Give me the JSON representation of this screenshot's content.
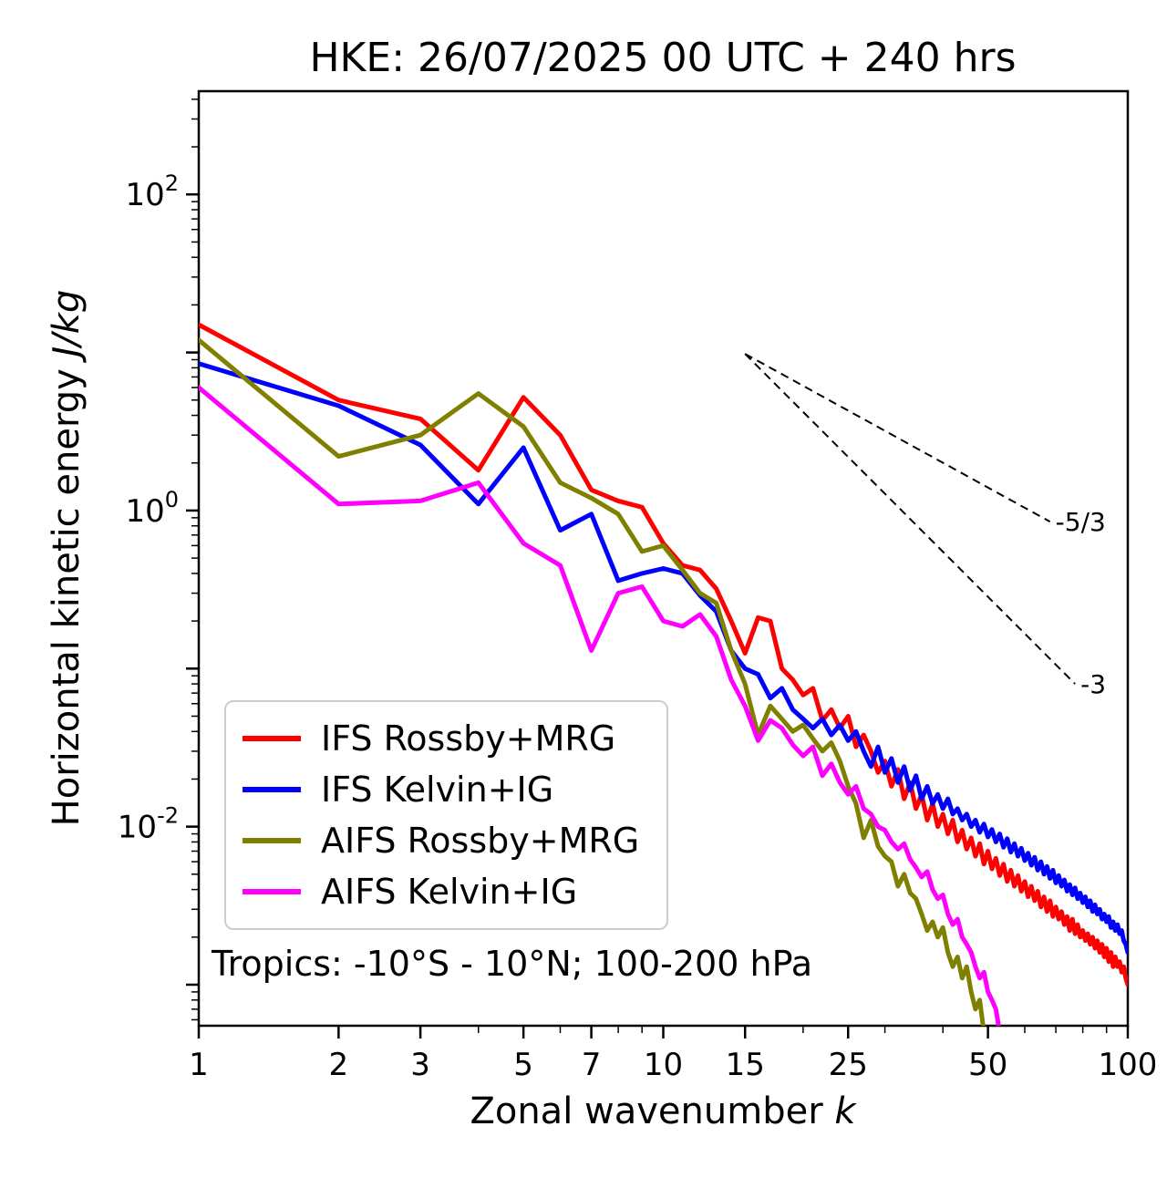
{
  "title": "HKE: 26/07/2025 00 UTC + 240 hrs",
  "labels": {
    "xlabel_text": "Zonal wavenumber ",
    "xlabel_math": "k",
    "ylabel_text": "Horizontal kinetic energy ",
    "ylabel_math": "J/kg",
    "annotation": "Tropics: -10°S - 10°N; 100-200 hPa"
  },
  "chart_data": {
    "type": "line",
    "x_scale": "log",
    "y_scale": "log",
    "xlim": [
      1,
      100
    ],
    "ylim": [
      0.00055,
      450.0
    ],
    "grid": false,
    "legend_position": "lower left",
    "xlabel": "Zonal wavenumber k",
    "ylabel": "Horizontal kinetic energy J/kg",
    "x_ticks": [
      1,
      2,
      3,
      5,
      7,
      10,
      15,
      25,
      50,
      100
    ],
    "x_minor_ticks": [
      4,
      6,
      8,
      9,
      20,
      30,
      40,
      60,
      70,
      80,
      90
    ],
    "y_tick_exponents": [
      2,
      0,
      -2
    ],
    "y_unlabeled_decades": [
      -3,
      -1,
      1
    ],
    "reference_lines": [
      {
        "label": "-5/3",
        "x": [
          15,
          68
        ],
        "y": [
          9.8,
          0.85
        ]
      },
      {
        "label": "-3",
        "x": [
          15,
          77
        ],
        "y": [
          9.8,
          0.08
        ]
      }
    ],
    "series": [
      {
        "name": "IFS Rossby+MRG",
        "color": "#ff0000",
        "x": [
          1,
          2,
          3,
          4,
          5,
          6,
          7,
          8,
          9,
          10,
          11,
          12,
          13,
          14,
          15,
          16,
          17,
          18,
          19,
          20,
          21,
          22,
          23,
          24,
          25,
          26,
          27,
          28,
          29,
          30,
          31,
          32,
          33,
          34,
          35,
          36,
          37,
          38,
          39,
          40,
          41,
          42,
          43,
          44,
          45,
          46,
          47,
          48,
          49,
          50,
          51,
          52,
          53,
          54,
          55,
          56,
          57,
          58,
          59,
          60,
          61,
          62,
          63,
          64,
          65,
          66,
          67,
          68,
          69,
          70,
          71,
          72,
          73,
          74,
          75,
          76,
          77,
          78,
          79,
          80,
          81,
          82,
          83,
          84,
          85,
          86,
          87,
          88,
          89,
          90,
          91,
          92,
          93,
          94,
          95,
          96,
          97,
          98,
          99,
          100
        ],
        "y": [
          15,
          5.0,
          3.8,
          1.8,
          5.2,
          3.0,
          1.35,
          1.15,
          1.05,
          0.62,
          0.45,
          0.42,
          0.32,
          0.2,
          0.125,
          0.21,
          0.2,
          0.1,
          0.085,
          0.068,
          0.075,
          0.047,
          0.055,
          0.042,
          0.05,
          0.032,
          0.038,
          0.03,
          0.022,
          0.026,
          0.018,
          0.023,
          0.015,
          0.019,
          0.013,
          0.016,
          0.011,
          0.014,
          0.01,
          0.012,
          0.009,
          0.011,
          0.008,
          0.0095,
          0.0072,
          0.0085,
          0.0065,
          0.0078,
          0.0058,
          0.007,
          0.0054,
          0.0063,
          0.0049,
          0.0058,
          0.0045,
          0.0053,
          0.0042,
          0.0049,
          0.0039,
          0.0045,
          0.0036,
          0.0042,
          0.0034,
          0.0039,
          0.0031,
          0.0036,
          0.0029,
          0.0034,
          0.0027,
          0.0031,
          0.0026,
          0.0029,
          0.0024,
          0.0027,
          0.0022,
          0.0026,
          0.0021,
          0.0024,
          0.002,
          0.0022,
          0.0019,
          0.0021,
          0.0018,
          0.002,
          0.0017,
          0.0019,
          0.0016,
          0.0018,
          0.0015,
          0.0017,
          0.0014,
          0.0016,
          0.0013,
          0.0015,
          0.0013,
          0.0014,
          0.0012,
          0.0013,
          0.0011,
          0.001
        ]
      },
      {
        "name": "IFS Kelvin+IG",
        "color": "#0000ff",
        "x": [
          1,
          2,
          3,
          4,
          5,
          6,
          7,
          8,
          9,
          10,
          11,
          12,
          13,
          14,
          15,
          16,
          17,
          18,
          19,
          20,
          21,
          22,
          23,
          24,
          25,
          26,
          27,
          28,
          29,
          30,
          31,
          32,
          33,
          34,
          35,
          36,
          37,
          38,
          39,
          40,
          41,
          42,
          43,
          44,
          45,
          46,
          47,
          48,
          49,
          50,
          51,
          52,
          53,
          54,
          55,
          56,
          57,
          58,
          59,
          60,
          61,
          62,
          63,
          64,
          65,
          66,
          67,
          68,
          69,
          70,
          71,
          72,
          73,
          74,
          75,
          76,
          77,
          78,
          79,
          80,
          81,
          82,
          83,
          84,
          85,
          86,
          87,
          88,
          89,
          90,
          91,
          92,
          93,
          94,
          95,
          96,
          97,
          98,
          99,
          100
        ],
        "y": [
          8.5,
          4.6,
          2.6,
          1.1,
          2.5,
          0.75,
          0.95,
          0.36,
          0.4,
          0.43,
          0.4,
          0.29,
          0.23,
          0.13,
          0.1,
          0.092,
          0.065,
          0.075,
          0.055,
          0.048,
          0.042,
          0.048,
          0.038,
          0.044,
          0.035,
          0.04,
          0.03,
          0.024,
          0.032,
          0.022,
          0.027,
          0.019,
          0.024,
          0.017,
          0.021,
          0.015,
          0.018,
          0.014,
          0.016,
          0.013,
          0.015,
          0.012,
          0.013,
          0.011,
          0.012,
          0.01,
          0.011,
          0.0092,
          0.0104,
          0.0086,
          0.0096,
          0.008,
          0.009,
          0.0074,
          0.0084,
          0.0069,
          0.0078,
          0.0065,
          0.0073,
          0.0061,
          0.0068,
          0.0057,
          0.0064,
          0.0053,
          0.006,
          0.005,
          0.0056,
          0.0047,
          0.0053,
          0.0044,
          0.0049,
          0.0042,
          0.0046,
          0.0039,
          0.0043,
          0.0037,
          0.0041,
          0.0035,
          0.0038,
          0.0033,
          0.0036,
          0.0031,
          0.0034,
          0.0029,
          0.0032,
          0.0028,
          0.003,
          0.0026,
          0.0028,
          0.0025,
          0.0027,
          0.0023,
          0.0025,
          0.0022,
          0.0024,
          0.0021,
          0.0022,
          0.0019,
          0.0018,
          0.0016
        ]
      },
      {
        "name": "AIFS Rossby+MRG",
        "color": "#808000",
        "x": [
          1,
          2,
          3,
          4,
          5,
          6,
          7,
          8,
          9,
          10,
          11,
          12,
          13,
          14,
          15,
          16,
          17,
          18,
          19,
          20,
          21,
          22,
          23,
          24,
          25,
          26,
          27,
          28,
          29,
          30,
          31,
          32,
          33,
          34,
          35,
          36,
          37,
          38,
          39,
          40,
          41,
          42,
          43,
          44,
          45,
          46,
          47,
          48,
          49,
          50,
          51
        ],
        "y": [
          12,
          2.2,
          3.0,
          5.5,
          3.4,
          1.5,
          1.2,
          0.95,
          0.55,
          0.6,
          0.42,
          0.3,
          0.26,
          0.13,
          0.08,
          0.038,
          0.058,
          0.048,
          0.04,
          0.044,
          0.036,
          0.03,
          0.034,
          0.026,
          0.018,
          0.014,
          0.0085,
          0.011,
          0.0075,
          0.0065,
          0.006,
          0.0042,
          0.005,
          0.0038,
          0.0035,
          0.0028,
          0.0022,
          0.0025,
          0.002,
          0.0023,
          0.0016,
          0.0013,
          0.0015,
          0.0011,
          0.0013,
          0.0009,
          0.0007,
          0.0008,
          0.0005,
          0.0003,
          0.00015
        ]
      },
      {
        "name": "AIFS Kelvin+IG",
        "color": "#ff00ff",
        "x": [
          1,
          2,
          3,
          4,
          5,
          6,
          7,
          8,
          9,
          10,
          11,
          12,
          13,
          14,
          15,
          16,
          17,
          18,
          19,
          20,
          21,
          22,
          23,
          24,
          25,
          26,
          27,
          28,
          29,
          30,
          31,
          32,
          33,
          34,
          35,
          36,
          37,
          38,
          39,
          40,
          41,
          42,
          43,
          44,
          45,
          46,
          47,
          48,
          49,
          50,
          51,
          52,
          53,
          54,
          55
        ],
        "y": [
          6.0,
          1.1,
          1.15,
          1.5,
          0.62,
          0.45,
          0.13,
          0.3,
          0.33,
          0.2,
          0.185,
          0.22,
          0.16,
          0.085,
          0.058,
          0.035,
          0.047,
          0.042,
          0.033,
          0.028,
          0.032,
          0.021,
          0.025,
          0.019,
          0.016,
          0.018,
          0.013,
          0.012,
          0.01,
          0.0095,
          0.008,
          0.0072,
          0.0078,
          0.0062,
          0.0055,
          0.0048,
          0.0052,
          0.004,
          0.0035,
          0.0037,
          0.0028,
          0.0024,
          0.0026,
          0.002,
          0.0018,
          0.0016,
          0.0013,
          0.0011,
          0.0012,
          0.0009,
          0.0008,
          0.0007,
          0.0005,
          0.0004,
          0.00025
        ]
      }
    ]
  }
}
